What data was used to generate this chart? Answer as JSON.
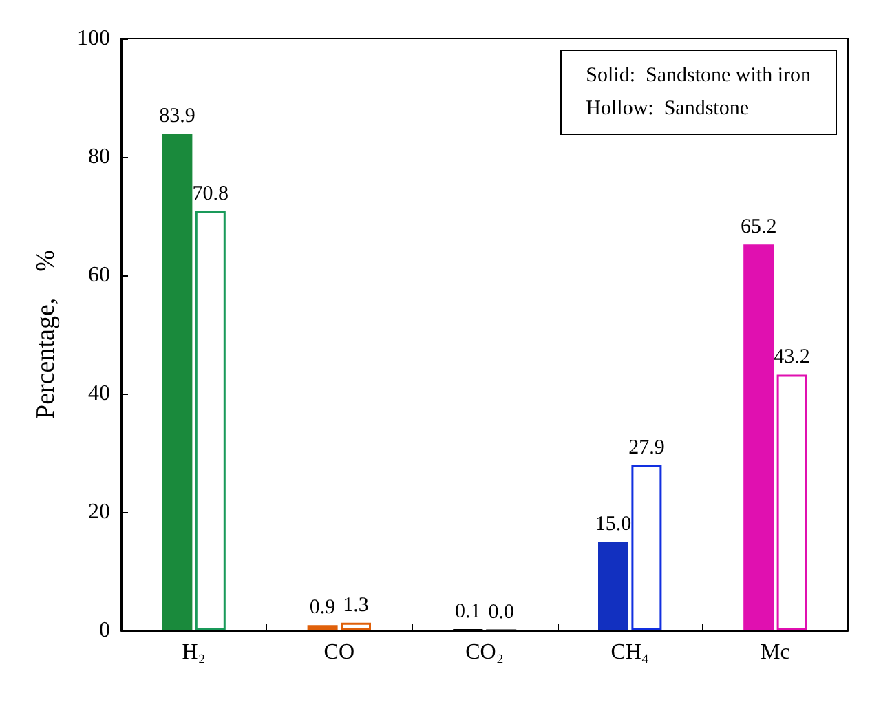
{
  "chart_data": {
    "type": "bar",
    "ylabel": "Percentage,    %",
    "categories": [
      "H₂",
      "CO",
      "CO₂",
      "CH₄",
      "Mc"
    ],
    "series": [
      {
        "colors": [
          "#1a8a3c",
          "#e0600a",
          "#000000",
          "#1230c0",
          "#e010b0"
        ],
        "values": [
          83.9,
          0.9,
          0.1,
          15.0,
          65.2
        ],
        "value_labels": [
          "83.9",
          "0.9",
          "0.1",
          "15.0",
          "65.2"
        ]
      },
      {
        "colors": [
          "#1a9a5a",
          "#e0600a",
          "#000000",
          "#1230e0",
          "#e010b0"
        ],
        "values": [
          70.8,
          1.3,
          0.0,
          27.9,
          43.2
        ],
        "value_labels": [
          "70.8",
          "1.3",
          "0.0",
          "27.9",
          "43.2"
        ]
      }
    ],
    "ylim": [
      0,
      100
    ],
    "yticks": [
      0,
      20,
      40,
      60,
      80,
      100
    ],
    "grid": false,
    "annotations": [
      "Solid:  Sandstone with iron",
      "Hollow:  Sandstone"
    ]
  }
}
